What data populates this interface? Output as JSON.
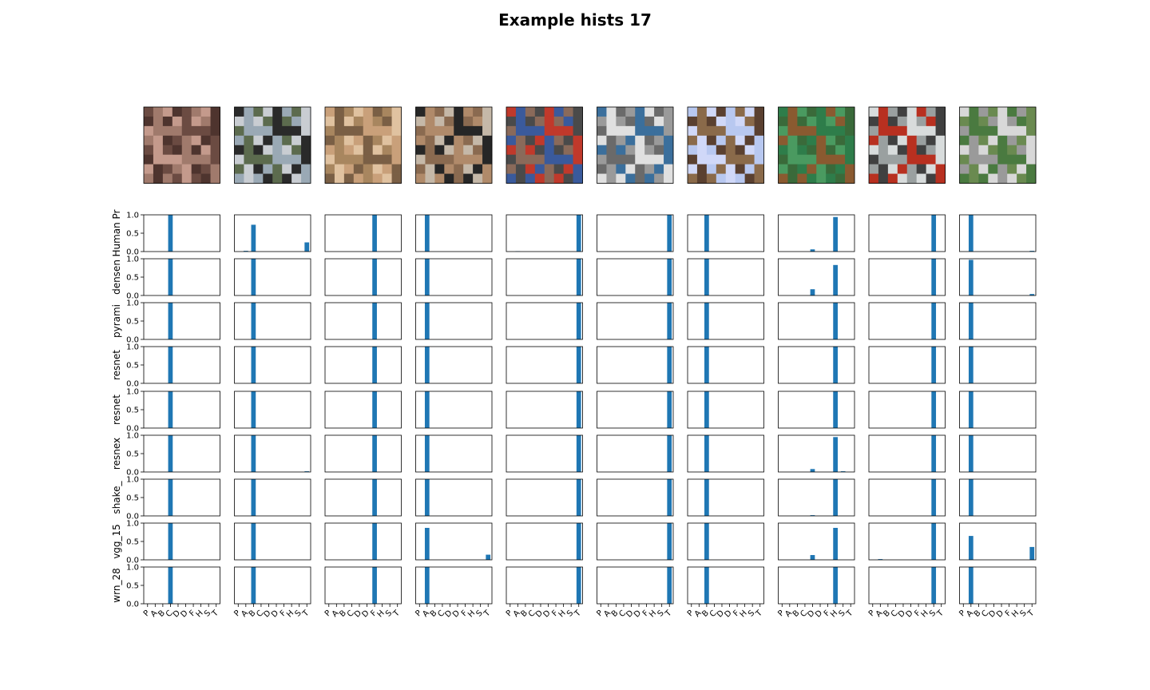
{
  "figure": {
    "title": "Example hists 17"
  },
  "chart_data": {
    "type": "bar",
    "title": "Example hists 17",
    "categories": [
      "P",
      "A",
      "B",
      "C",
      "D",
      "D",
      "F",
      "H",
      "S",
      "T"
    ],
    "ylim": [
      0,
      1
    ],
    "yticks": [
      "0.0",
      "0.5",
      "1.0"
    ],
    "grid": false,
    "color": "#1f77b4",
    "images": [
      {
        "name": "image-cat",
        "colors": [
          "#6b4b42",
          "#a07a6c",
          "#c49a8c",
          "#4e342e"
        ]
      },
      {
        "name": "image-black-car",
        "colors": [
          "#2a2a2a",
          "#9aa9b5",
          "#5c6b4e",
          "#c9cdd2"
        ]
      },
      {
        "name": "image-frog",
        "colors": [
          "#c9a07a",
          "#7a5f45",
          "#a8865f",
          "#e0c2a0"
        ]
      },
      {
        "name": "image-police-car",
        "colors": [
          "#262626",
          "#b08a6a",
          "#8a6a50",
          "#c5b8a8"
        ]
      },
      {
        "name": "image-fire-truck",
        "colors": [
          "#c0392b",
          "#3a5a9c",
          "#8a6a5a",
          "#4a4a4a"
        ]
      },
      {
        "name": "image-truck",
        "colors": [
          "#3b6f9c",
          "#e0e0e0",
          "#6a6a6a",
          "#9a9a9a"
        ]
      },
      {
        "name": "image-bird",
        "colors": [
          "#b8c8f0",
          "#8a6a4a",
          "#d0d8f8",
          "#5a4030"
        ]
      },
      {
        "name": "image-horse",
        "colors": [
          "#2e7d4a",
          "#8a5a30",
          "#4a9a60",
          "#3a6a3a"
        ]
      },
      {
        "name": "image-boat",
        "colors": [
          "#d8dcdc",
          "#b83020",
          "#9aa0a0",
          "#404040"
        ]
      },
      {
        "name": "image-van",
        "colors": [
          "#d8d8d8",
          "#4a7a40",
          "#9a9a9a",
          "#6a8a50"
        ]
      }
    ],
    "rows": [
      {
        "label": "Human Pr",
        "hists": [
          [
            0,
            0,
            0,
            1,
            0,
            0,
            0,
            0,
            0,
            0
          ],
          [
            0,
            0.02,
            0.73,
            0,
            0,
            0,
            0,
            0,
            0,
            0.25
          ],
          [
            0,
            0,
            0,
            0,
            0,
            0,
            1,
            0,
            0,
            0
          ],
          [
            0,
            1,
            0,
            0,
            0,
            0,
            0,
            0,
            0,
            0
          ],
          [
            0,
            0.01,
            0,
            0,
            0,
            0,
            0,
            0,
            0,
            1
          ],
          [
            0,
            0,
            0,
            0,
            0,
            0,
            0,
            0,
            0,
            1
          ],
          [
            0,
            0,
            1,
            0,
            0,
            0,
            0,
            0,
            0,
            0
          ],
          [
            0,
            0,
            0,
            0,
            0.06,
            0,
            0,
            0.94,
            0,
            0
          ],
          [
            0,
            0,
            0,
            0,
            0,
            0,
            0,
            0,
            1,
            0
          ],
          [
            0,
            1,
            0,
            0,
            0,
            0,
            0,
            0,
            0,
            0.02
          ]
        ]
      },
      {
        "label": "densen",
        "hists": [
          [
            0,
            0,
            0,
            1,
            0,
            0,
            0,
            0,
            0,
            0
          ],
          [
            0,
            0,
            1,
            0,
            0,
            0,
            0,
            0,
            0,
            0
          ],
          [
            0,
            0,
            0,
            0,
            0,
            0,
            1,
            0,
            0,
            0
          ],
          [
            0,
            1,
            0,
            0,
            0,
            0,
            0,
            0,
            0,
            0
          ],
          [
            0,
            0,
            0,
            0,
            0,
            0,
            0,
            0,
            0,
            1
          ],
          [
            0,
            0,
            0,
            0,
            0,
            0,
            0,
            0,
            0,
            1
          ],
          [
            0,
            0,
            1,
            0,
            0,
            0,
            0,
            0,
            0,
            0
          ],
          [
            0,
            0,
            0,
            0,
            0.17,
            0,
            0,
            0.83,
            0,
            0
          ],
          [
            0,
            0,
            0,
            0,
            0,
            0,
            0,
            0,
            1,
            0
          ],
          [
            0,
            0.97,
            0,
            0,
            0,
            0,
            0,
            0,
            0,
            0.04
          ]
        ]
      },
      {
        "label": "pyrami",
        "hists": [
          [
            0,
            0,
            0,
            1,
            0,
            0,
            0,
            0,
            0,
            0
          ],
          [
            0,
            0,
            1,
            0,
            0,
            0,
            0,
            0,
            0,
            0
          ],
          [
            0,
            0,
            0,
            0,
            0,
            0,
            1,
            0,
            0,
            0
          ],
          [
            0,
            1,
            0,
            0,
            0,
            0,
            0,
            0,
            0,
            0
          ],
          [
            0,
            0,
            0,
            0,
            0,
            0,
            0,
            0,
            0,
            1
          ],
          [
            0,
            0,
            0,
            0,
            0,
            0,
            0,
            0,
            0,
            1
          ],
          [
            0,
            0,
            1,
            0,
            0,
            0,
            0,
            0,
            0,
            0
          ],
          [
            0,
            0,
            0,
            0,
            0,
            0,
            0,
            1,
            0,
            0
          ],
          [
            0,
            0,
            0,
            0,
            0,
            0,
            0,
            0,
            1,
            0
          ],
          [
            0,
            1,
            0,
            0,
            0,
            0,
            0,
            0,
            0,
            0
          ]
        ]
      },
      {
        "label": "resnet",
        "hists": [
          [
            0,
            0,
            0,
            1,
            0,
            0,
            0,
            0,
            0,
            0
          ],
          [
            0,
            0,
            1,
            0,
            0,
            0,
            0,
            0,
            0,
            0
          ],
          [
            0,
            0,
            0,
            0,
            0,
            0,
            1,
            0,
            0,
            0
          ],
          [
            0,
            1,
            0,
            0,
            0,
            0,
            0,
            0,
            0,
            0
          ],
          [
            0,
            0,
            0,
            0,
            0,
            0,
            0,
            0,
            0,
            1
          ],
          [
            0,
            0,
            0,
            0,
            0,
            0,
            0,
            0,
            0,
            1
          ],
          [
            0,
            0,
            1,
            0,
            0,
            0,
            0,
            0,
            0,
            0
          ],
          [
            0,
            0,
            0,
            0,
            0,
            0,
            0,
            1,
            0,
            0
          ],
          [
            0,
            0,
            0,
            0,
            0,
            0,
            0,
            0,
            1,
            0
          ],
          [
            0,
            1,
            0,
            0,
            0,
            0,
            0,
            0,
            0,
            0
          ]
        ]
      },
      {
        "label": "resnet",
        "hists": [
          [
            0,
            0,
            0,
            1,
            0,
            0,
            0,
            0,
            0,
            0
          ],
          [
            0,
            0,
            1,
            0,
            0,
            0,
            0,
            0,
            0,
            0
          ],
          [
            0,
            0,
            0,
            0,
            0,
            0,
            1,
            0,
            0,
            0
          ],
          [
            0,
            1,
            0,
            0,
            0,
            0,
            0,
            0,
            0,
            0
          ],
          [
            0,
            0,
            0,
            0,
            0,
            0,
            0,
            0,
            0,
            1
          ],
          [
            0,
            0,
            0,
            0,
            0,
            0,
            0,
            0,
            0,
            1
          ],
          [
            0,
            0,
            1,
            0,
            0,
            0,
            0,
            0,
            0,
            0
          ],
          [
            0,
            0,
            0,
            0,
            0,
            0,
            0,
            1,
            0,
            0
          ],
          [
            0,
            0,
            0,
            0,
            0,
            0,
            0,
            0,
            1,
            0
          ],
          [
            0,
            1,
            0,
            0,
            0,
            0,
            0,
            0,
            0,
            0
          ]
        ]
      },
      {
        "label": "resnex",
        "hists": [
          [
            0,
            0,
            0,
            1,
            0,
            0,
            0,
            0,
            0,
            0
          ],
          [
            0,
            0,
            1,
            0,
            0,
            0,
            0,
            0,
            0,
            0.02
          ],
          [
            0,
            0,
            0,
            0,
            0,
            0,
            1,
            0,
            0,
            0
          ],
          [
            0,
            1,
            0,
            0,
            0,
            0,
            0,
            0,
            0,
            0
          ],
          [
            0,
            0,
            0,
            0,
            0,
            0,
            0,
            0,
            0,
            1
          ],
          [
            0,
            0,
            0,
            0,
            0,
            0,
            0,
            0,
            0,
            1
          ],
          [
            0,
            0,
            1,
            0,
            0,
            0,
            0,
            0,
            0,
            0
          ],
          [
            0,
            0,
            0,
            0,
            0.08,
            0,
            0,
            0.95,
            0.02,
            0
          ],
          [
            0,
            0,
            0,
            0,
            0,
            0,
            0,
            0,
            1,
            0
          ],
          [
            0,
            1,
            0,
            0,
            0,
            0,
            0,
            0,
            0,
            0
          ]
        ]
      },
      {
        "label": "shake_",
        "hists": [
          [
            0,
            0,
            0,
            1,
            0,
            0,
            0,
            0,
            0,
            0
          ],
          [
            0,
            0,
            1,
            0,
            0,
            0,
            0,
            0,
            0,
            0
          ],
          [
            0,
            0,
            0,
            0,
            0,
            0,
            1,
            0,
            0,
            0
          ],
          [
            0,
            1,
            0,
            0,
            0,
            0,
            0,
            0,
            0,
            0
          ],
          [
            0,
            0,
            0,
            0,
            0,
            0,
            0,
            0,
            0,
            1
          ],
          [
            0,
            0,
            0,
            0,
            0,
            0,
            0,
            0,
            0,
            1
          ],
          [
            0,
            0,
            1,
            0,
            0,
            0,
            0,
            0,
            0,
            0
          ],
          [
            0,
            0,
            0,
            0,
            0.02,
            0,
            0,
            1,
            0,
            0
          ],
          [
            0,
            0,
            0,
            0,
            0,
            0,
            0,
            0,
            1,
            0
          ],
          [
            0,
            1,
            0,
            0,
            0,
            0,
            0,
            0,
            0,
            0
          ]
        ]
      },
      {
        "label": "vgg_15",
        "hists": [
          [
            0,
            0,
            0,
            1,
            0,
            0,
            0,
            0,
            0,
            0
          ],
          [
            0,
            0,
            1,
            0,
            0,
            0,
            0,
            0,
            0,
            0
          ],
          [
            0,
            0,
            0,
            0,
            0,
            0,
            1,
            0,
            0,
            0
          ],
          [
            0,
            0.87,
            0,
            0,
            0,
            0,
            0,
            0,
            0,
            0.14
          ],
          [
            0,
            0,
            0,
            0,
            0,
            0,
            0,
            0,
            0,
            1
          ],
          [
            0,
            0,
            0,
            0,
            0,
            0,
            0,
            0,
            0,
            1
          ],
          [
            0,
            0,
            1,
            0,
            0,
            0,
            0,
            0,
            0,
            0
          ],
          [
            0,
            0,
            0,
            0,
            0.13,
            0,
            0,
            0.87,
            0,
            0
          ],
          [
            0,
            0.02,
            0,
            0,
            0,
            0,
            0,
            0,
            1,
            0
          ],
          [
            0,
            0.65,
            0,
            0,
            0,
            0,
            0,
            0,
            0,
            0.35
          ]
        ]
      },
      {
        "label": "wrn_28",
        "hists": [
          [
            0,
            0,
            0,
            1,
            0,
            0,
            0,
            0,
            0,
            0
          ],
          [
            0,
            0,
            1,
            0,
            0,
            0,
            0,
            0,
            0,
            0
          ],
          [
            0,
            0,
            0,
            0,
            0,
            0,
            1,
            0,
            0,
            0
          ],
          [
            0,
            1,
            0,
            0,
            0,
            0,
            0,
            0,
            0,
            0
          ],
          [
            0,
            0,
            0,
            0,
            0,
            0,
            0,
            0,
            0,
            1
          ],
          [
            0,
            0,
            0,
            0,
            0,
            0,
            0,
            0,
            0,
            1
          ],
          [
            0,
            0,
            1,
            0,
            0,
            0,
            0,
            0,
            0,
            0
          ],
          [
            0,
            0,
            0,
            0,
            0,
            0,
            0,
            1,
            0,
            0
          ],
          [
            0,
            0,
            0,
            0,
            0,
            0,
            0,
            0,
            1,
            0
          ],
          [
            0,
            1,
            0,
            0,
            0,
            0,
            0,
            0,
            0,
            0
          ]
        ]
      }
    ]
  }
}
